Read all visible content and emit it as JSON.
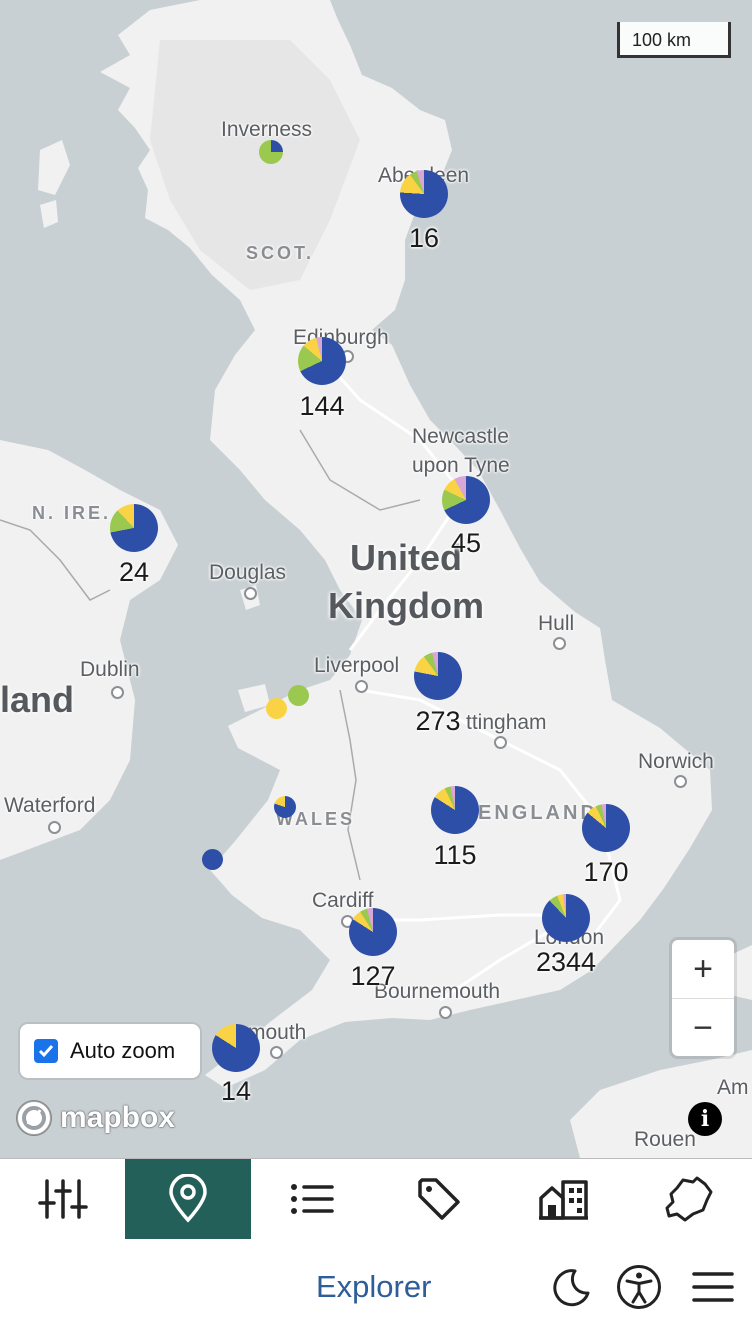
{
  "map": {
    "scale_label": "100 km",
    "places": [
      "Inverness",
      "Aberdeen",
      "Edinburgh",
      "Newcastle",
      "upon Tyne",
      "Douglas",
      "Hull",
      "Dublin",
      "Liverpool",
      "Nottingham",
      "Norwich",
      "Waterford",
      "Cardiff",
      "London",
      "Bournemouth",
      "Plymouth",
      "Amsterdam",
      "Rouen"
    ],
    "place_labels": {
      "inverness": "Inverness",
      "aberdeen": "Aberdeen",
      "edinburgh": "Edinburgh",
      "newcastle_1": "Newcastle",
      "newcastle_2": "upon Tyne",
      "douglas": "Douglas",
      "hull": "Hull",
      "dublin": "Dublin",
      "liverpool": "Liverpool",
      "nottingham": "ttingham",
      "norwich": "Norwich",
      "waterford": "Waterford",
      "cardiff": "Cardiff",
      "london": "London",
      "bournemouth": "Bournemouth",
      "plymouth": "mouth",
      "amsterdam": "Am",
      "rouen": "Rouen"
    },
    "regions": {
      "scotland": "SCOT.",
      "northern_ireland": "N. IRE.",
      "wales": "WALES",
      "england": "ENGLAND"
    },
    "country": {
      "line1": "United",
      "line2": "Kingdom"
    },
    "ireland_partial": "land",
    "clusters": [
      {
        "label": "16",
        "colors": [
          "#2e4fa8",
          "#fad345",
          "#9bc84f",
          "#d8a6d7"
        ]
      },
      {
        "label": "144"
      },
      {
        "label": "45"
      },
      {
        "label": "24"
      },
      {
        "label": "273"
      },
      {
        "label": "115"
      },
      {
        "label": "170"
      },
      {
        "label": "127"
      },
      {
        "label": "2344"
      },
      {
        "label": "14"
      }
    ],
    "auto_zoom": {
      "label": "Auto zoom",
      "checked": true
    },
    "zoom_in": "+",
    "zoom_out": "−",
    "attribution": "mapbox",
    "info_symbol": "i"
  },
  "toolbar": {
    "items": [
      {
        "icon": "sliders-icon",
        "active": false
      },
      {
        "icon": "map-pin-icon",
        "active": true
      },
      {
        "icon": "list-icon",
        "active": false
      },
      {
        "icon": "tag-icon",
        "active": false
      },
      {
        "icon": "buildings-icon",
        "active": false
      },
      {
        "icon": "region-outline-icon",
        "active": false
      }
    ],
    "active_color": "#24605a"
  },
  "footer": {
    "title": "Explorer",
    "icons": [
      "moon-icon",
      "accessibility-icon",
      "hamburger-menu-icon"
    ]
  }
}
